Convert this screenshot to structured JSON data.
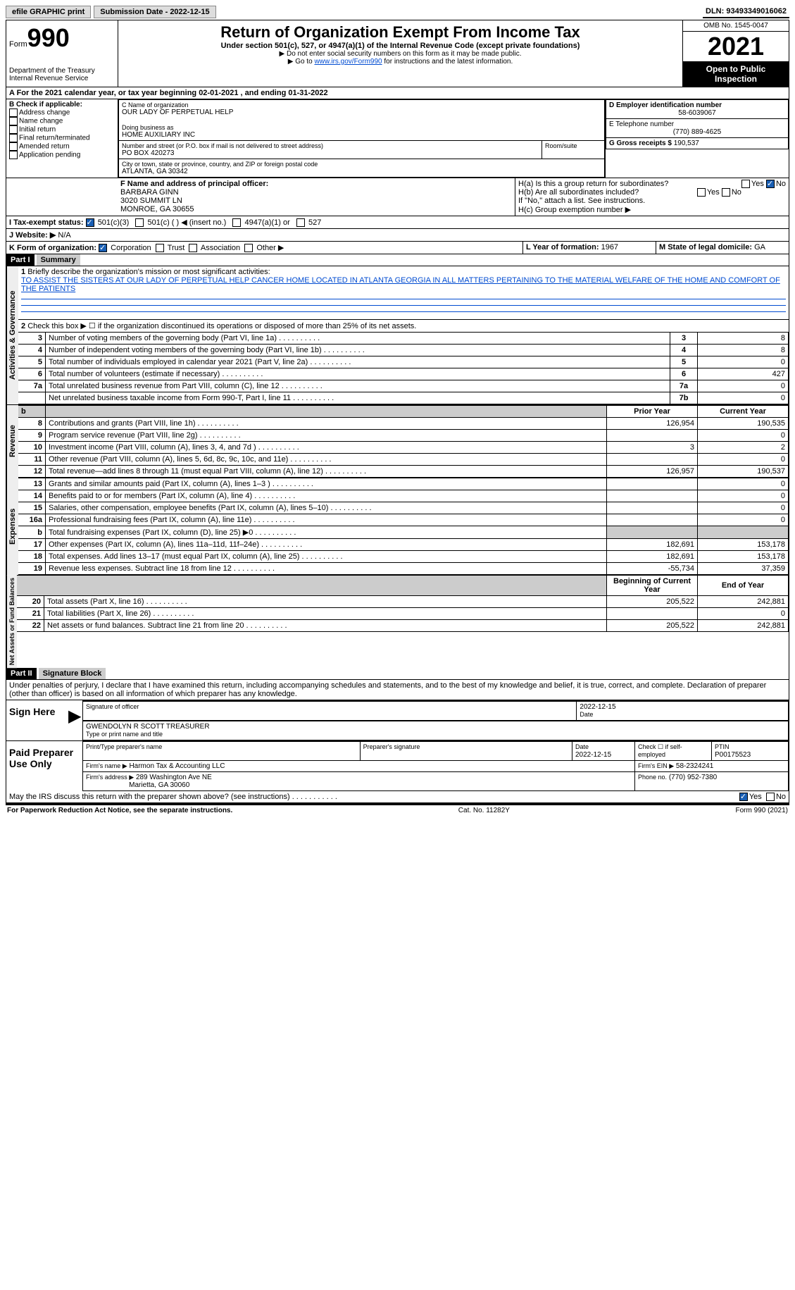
{
  "topbar": {
    "efile": "efile GRAPHIC print",
    "submission_label": "Submission Date - 2022-12-15",
    "dln": "DLN: 93493349016062"
  },
  "header": {
    "form_word": "Form",
    "form_num": "990",
    "title": "Return of Organization Exempt From Income Tax",
    "subtitle": "Under section 501(c), 527, or 4947(a)(1) of the Internal Revenue Code (except private foundations)",
    "note1": "▶ Do not enter social security numbers on this form as it may be made public.",
    "note2_pre": "▶ Go to ",
    "note2_link": "www.irs.gov/Form990",
    "note2_post": " for instructions and the latest information.",
    "dept": "Department of the Treasury",
    "irs": "Internal Revenue Service",
    "omb": "OMB No. 1545-0047",
    "year": "2021",
    "open": "Open to Public Inspection"
  },
  "A": {
    "text": "A For the 2021 calendar year, or tax year beginning 02-01-2021   , and ending 01-31-2022"
  },
  "B": {
    "label": "B Check if applicable:",
    "opts": [
      "Address change",
      "Name change",
      "Initial return",
      "Final return/terminated",
      "Amended return",
      "Application pending"
    ]
  },
  "C": {
    "name_label": "C Name of organization",
    "name": "OUR LADY OF PERPETUAL HELP",
    "dba_label": "Doing business as",
    "dba": "HOME AUXILIARY INC",
    "street_label": "Number and street (or P.O. box if mail is not delivered to street address)",
    "street": "PO BOX 420273",
    "room_label": "Room/suite",
    "city_label": "City or town, state or province, country, and ZIP or foreign postal code",
    "city": "ATLANTA, GA  30342"
  },
  "D": {
    "label": "D Employer identification number",
    "val": "58-6039067"
  },
  "E": {
    "label": "E Telephone number",
    "val": "(770) 889-4625"
  },
  "G": {
    "label": "G Gross receipts $",
    "val": "190,537"
  },
  "F": {
    "label": "F  Name and address of principal officer:",
    "name": "BARBARA GINN",
    "addr1": "3020 SUMMIT LN",
    "addr2": "MONROE, GA  30655"
  },
  "H": {
    "a": "H(a)  Is this a group return for subordinates?",
    "b": "H(b)  Are all subordinates included?",
    "b_note": "If \"No,\" attach a list. See instructions.",
    "c": "H(c)  Group exemption number ▶",
    "yes": "Yes",
    "no": "No"
  },
  "I": {
    "label": "I  Tax-exempt status:",
    "opts": [
      "501(c)(3)",
      "501(c) (  ) ◀ (insert no.)",
      "4947(a)(1) or",
      "527"
    ]
  },
  "J": {
    "label": "J  Website: ▶",
    "val": "N/A"
  },
  "K": {
    "label": "K Form of organization:",
    "opts": [
      "Corporation",
      "Trust",
      "Association",
      "Other ▶"
    ]
  },
  "L": {
    "label": "L Year of formation:",
    "val": "1967"
  },
  "M": {
    "label": "M State of legal domicile:",
    "val": "GA"
  },
  "part1": {
    "label": "Part I",
    "title": "Summary",
    "q1": "Briefly describe the organization's mission or most significant activities:",
    "mission": "TO ASSIST THE SISTERS AT OUR LADY OF PERPETUAL HELP CANCER HOME LOCATED IN ATLANTA GEORGIA IN ALL MATTERS PERTAINING TO THE MATERIAL WELFARE OF THE HOME AND COMFORT OF THE PATIENTS",
    "q2": "Check this box ▶ ☐ if the organization discontinued its operations or disposed of more than 25% of its net assets.",
    "sections": {
      "activities": "Activities & Governance",
      "revenue": "Revenue",
      "expenses": "Expenses",
      "netassets": "Net Assets or Fund Balances"
    },
    "lines_ag": [
      {
        "n": "3",
        "t": "Number of voting members of the governing body (Part VI, line 1a)",
        "box": "3",
        "v": "8"
      },
      {
        "n": "4",
        "t": "Number of independent voting members of the governing body (Part VI, line 1b)",
        "box": "4",
        "v": "8"
      },
      {
        "n": "5",
        "t": "Total number of individuals employed in calendar year 2021 (Part V, line 2a)",
        "box": "5",
        "v": "0"
      },
      {
        "n": "6",
        "t": "Total number of volunteers (estimate if necessary)",
        "box": "6",
        "v": "427"
      },
      {
        "n": "7a",
        "t": "Total unrelated business revenue from Part VIII, column (C), line 12",
        "box": "7a",
        "v": "0"
      },
      {
        "n": "",
        "t": "Net unrelated business taxable income from Form 990-T, Part I, line 11",
        "box": "7b",
        "v": "0"
      }
    ],
    "col_prior": "Prior Year",
    "col_current": "Current Year",
    "lines_rev": [
      {
        "n": "8",
        "t": "Contributions and grants (Part VIII, line 1h)",
        "p": "126,954",
        "c": "190,535"
      },
      {
        "n": "9",
        "t": "Program service revenue (Part VIII, line 2g)",
        "p": "",
        "c": "0"
      },
      {
        "n": "10",
        "t": "Investment income (Part VIII, column (A), lines 3, 4, and 7d )",
        "p": "3",
        "c": "2"
      },
      {
        "n": "11",
        "t": "Other revenue (Part VIII, column (A), lines 5, 6d, 8c, 9c, 10c, and 11e)",
        "p": "",
        "c": "0"
      },
      {
        "n": "12",
        "t": "Total revenue—add lines 8 through 11 (must equal Part VIII, column (A), line 12)",
        "p": "126,957",
        "c": "190,537"
      }
    ],
    "lines_exp": [
      {
        "n": "13",
        "t": "Grants and similar amounts paid (Part IX, column (A), lines 1–3 )",
        "p": "",
        "c": "0"
      },
      {
        "n": "14",
        "t": "Benefits paid to or for members (Part IX, column (A), line 4)",
        "p": "",
        "c": "0"
      },
      {
        "n": "15",
        "t": "Salaries, other compensation, employee benefits (Part IX, column (A), lines 5–10)",
        "p": "",
        "c": "0"
      },
      {
        "n": "16a",
        "t": "Professional fundraising fees (Part IX, column (A), line 11e)",
        "p": "",
        "c": "0"
      },
      {
        "n": "b",
        "t": "Total fundraising expenses (Part IX, column (D), line 25) ▶0",
        "p": "gray",
        "c": "gray"
      },
      {
        "n": "17",
        "t": "Other expenses (Part IX, column (A), lines 11a–11d, 11f–24e)",
        "p": "182,691",
        "c": "153,178"
      },
      {
        "n": "18",
        "t": "Total expenses. Add lines 13–17 (must equal Part IX, column (A), line 25)",
        "p": "182,691",
        "c": "153,178"
      },
      {
        "n": "19",
        "t": "Revenue less expenses. Subtract line 18 from line 12",
        "p": "-55,734",
        "c": "37,359"
      }
    ],
    "col_begin": "Beginning of Current Year",
    "col_end": "End of Year",
    "lines_na": [
      {
        "n": "20",
        "t": "Total assets (Part X, line 16)",
        "p": "205,522",
        "c": "242,881"
      },
      {
        "n": "21",
        "t": "Total liabilities (Part X, line 26)",
        "p": "",
        "c": "0"
      },
      {
        "n": "22",
        "t": "Net assets or fund balances. Subtract line 21 from line 20",
        "p": "205,522",
        "c": "242,881"
      }
    ]
  },
  "part2": {
    "label": "Part II",
    "title": "Signature Block",
    "decl": "Under penalties of perjury, I declare that I have examined this return, including accompanying schedules and statements, and to the best of my knowledge and belief, it is true, correct, and complete. Declaration of preparer (other than officer) is based on all information of which preparer has any knowledge.",
    "sign_here": "Sign Here",
    "sig_officer": "Signature of officer",
    "sig_date": "2022-12-15",
    "date_label": "Date",
    "officer_name": "GWENDOLYN R SCOTT TREASURER",
    "type_name": "Type or print name and title",
    "paid": "Paid Preparer Use Only",
    "prep_name_label": "Print/Type preparer's name",
    "prep_sig_label": "Preparer's signature",
    "prep_date": "2022-12-15",
    "check_self": "Check ☐ if self-employed",
    "ptin_label": "PTIN",
    "ptin": "P00175523",
    "firm_name_label": "Firm's name      ▶",
    "firm_name": "Harmon Tax & Accounting LLC",
    "firm_ein_label": "Firm's EIN ▶",
    "firm_ein": "58-2324241",
    "firm_addr_label": "Firm's address ▶",
    "firm_addr1": "289 Washington Ave NE",
    "firm_addr2": "Marietta, GA  30060",
    "phone_label": "Phone no.",
    "phone": "(770) 952-7380",
    "discuss": "May the IRS discuss this return with the preparer shown above? (see instructions)",
    "discuss_yes": "Yes",
    "discuss_no": "No"
  },
  "footer": {
    "left": "For Paperwork Reduction Act Notice, see the separate instructions.",
    "mid": "Cat. No. 11282Y",
    "right": "Form 990 (2021)"
  }
}
